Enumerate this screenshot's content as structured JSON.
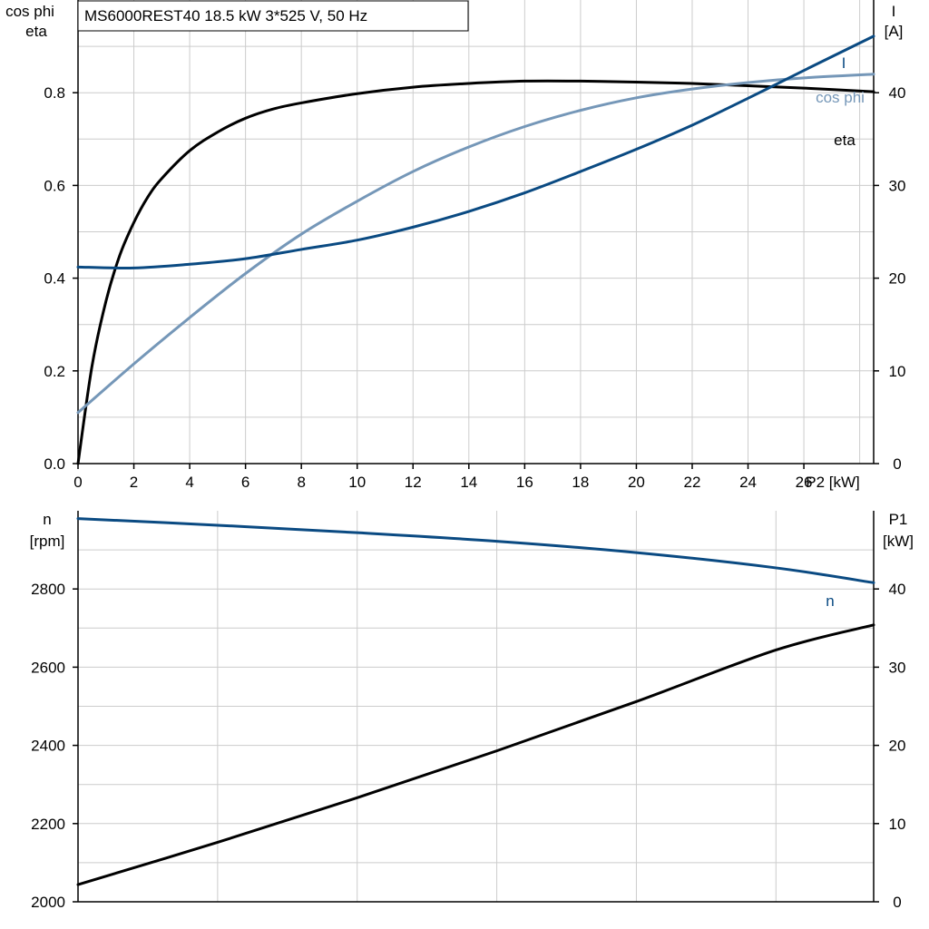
{
  "title": "MS6000REST40   18.5 kW   3*525 V, 50 Hz",
  "chart_data": [
    {
      "type": "line",
      "x_axis": {
        "label": "P2 [kW]",
        "range": [
          0,
          28.5
        ],
        "ticks": [
          0,
          2,
          4,
          6,
          8,
          10,
          12,
          14,
          16,
          18,
          20,
          22,
          24,
          26
        ]
      },
      "y_left": {
        "label_lines": [
          "cos phi",
          "eta"
        ],
        "range": [
          0,
          1.0
        ],
        "ticks": [
          "0.0",
          "0.2",
          "0.4",
          "0.6",
          "0.8"
        ]
      },
      "y_right": {
        "label_lines": [
          "I",
          "[A]"
        ],
        "range": [
          0,
          50
        ],
        "ticks": [
          0,
          10,
          20,
          30,
          40
        ]
      },
      "grid": true,
      "series": [
        {
          "name": "eta",
          "axis": "left",
          "color": "#000000",
          "x": [
            0,
            0.5,
            1,
            1.5,
            2,
            2.5,
            3,
            4,
            5,
            6,
            7,
            8,
            10,
            12,
            14,
            16,
            18,
            20,
            22,
            24,
            26,
            28.5
          ],
          "y": [
            0,
            0.21,
            0.35,
            0.45,
            0.52,
            0.575,
            0.615,
            0.675,
            0.715,
            0.745,
            0.765,
            0.778,
            0.798,
            0.812,
            0.82,
            0.825,
            0.825,
            0.823,
            0.82,
            0.815,
            0.81,
            0.802
          ]
        },
        {
          "name": "cos phi",
          "axis": "left",
          "color": "#7597b8",
          "x": [
            0,
            2,
            4,
            6,
            8,
            10,
            12,
            14,
            16,
            18,
            20,
            22,
            24,
            26,
            28.5
          ],
          "y": [
            0.11,
            0.215,
            0.315,
            0.41,
            0.495,
            0.566,
            0.63,
            0.683,
            0.727,
            0.762,
            0.789,
            0.808,
            0.822,
            0.832,
            0.84
          ]
        },
        {
          "name": "I",
          "axis": "right",
          "color": "#0a4a82",
          "x": [
            0,
            2,
            4,
            6,
            8,
            10,
            12,
            14,
            16,
            18,
            20,
            22,
            24,
            26,
            28.5
          ],
          "y": [
            21.2,
            21.1,
            21.5,
            22.1,
            23.1,
            24.1,
            25.5,
            27.2,
            29.2,
            31.5,
            33.9,
            36.5,
            39.4,
            42.4,
            46.1
          ]
        }
      ]
    },
    {
      "type": "line",
      "x_axis": {
        "range": [
          0,
          28.5
        ],
        "ticks": []
      },
      "y_left": {
        "label_lines": [
          "n",
          "[rpm]"
        ],
        "range": [
          2000,
          3000
        ],
        "ticks": [
          2000,
          2200,
          2400,
          2600,
          2800
        ]
      },
      "y_right": {
        "label_lines": [
          "P1",
          "[kW]"
        ],
        "range": [
          0,
          50
        ],
        "ticks": [
          0,
          10,
          20,
          30,
          40
        ]
      },
      "grid": true,
      "series": [
        {
          "name": "n",
          "axis": "left",
          "color": "#0a4a82",
          "x": [
            0,
            5,
            10,
            15,
            20,
            25,
            28.5
          ],
          "y": [
            2980,
            2963,
            2944,
            2922,
            2893,
            2854,
            2816
          ]
        },
        {
          "name": "",
          "axis": "right",
          "color": "#000000",
          "x": [
            0,
            5,
            10,
            15,
            20,
            25,
            28.5
          ],
          "y": [
            2.2,
            7.6,
            13.3,
            19.3,
            25.6,
            32.2,
            35.4
          ]
        }
      ]
    }
  ]
}
